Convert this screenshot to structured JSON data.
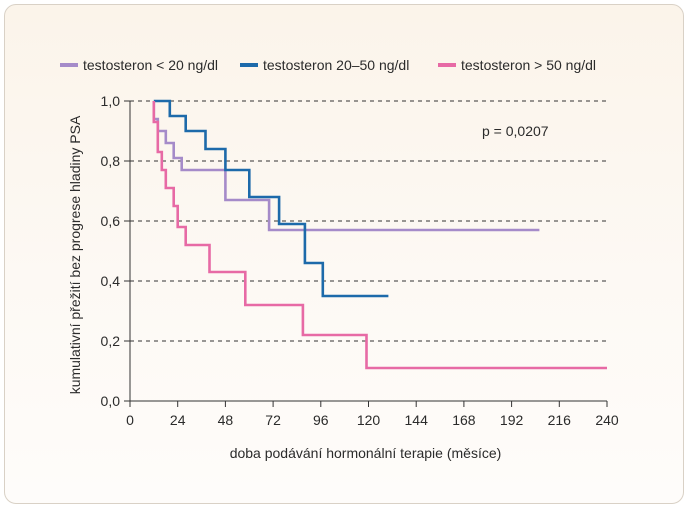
{
  "chart_data": {
    "type": "line",
    "subtype": "kaplan-meier step curves",
    "xlabel": "doba podávání hormonální terapie (měsíce)",
    "ylabel": "kumulativní přežití bez progrese hladiny PSA",
    "xlim": [
      0,
      240
    ],
    "ylim": [
      0,
      1
    ],
    "x_ticks": [
      0,
      24,
      48,
      72,
      96,
      120,
      144,
      168,
      192,
      216,
      240
    ],
    "y_ticks": [
      0,
      0.2,
      0.4,
      0.6,
      0.8,
      1.0
    ],
    "x_tick_labels": [
      "0",
      "24",
      "48",
      "72",
      "96",
      "120",
      "144",
      "168",
      "192",
      "216",
      "240"
    ],
    "y_tick_labels": [
      "0,0",
      "0,2",
      "0,4",
      "0,6",
      "0,8",
      "1,0"
    ],
    "grid": "horizontal dashed",
    "legend_position": "top",
    "annotation": "p = 0,0207",
    "series": [
      {
        "name": "testosteron < 20 ng/dl",
        "color": "#a58bc9",
        "x": [
          12,
          12,
          14,
          14,
          18,
          18,
          22,
          22,
          26,
          26,
          36,
          36,
          48,
          48,
          52,
          52,
          70,
          70,
          206
        ],
        "y": [
          1.0,
          0.94,
          0.94,
          0.9,
          0.9,
          0.86,
          0.86,
          0.81,
          0.81,
          0.77,
          0.77,
          0.77,
          0.77,
          0.67,
          0.67,
          0.67,
          0.67,
          0.57,
          0.57
        ]
      },
      {
        "name": "testosteron 20–50 ng/dl",
        "color": "#1d6aaa",
        "x": [
          12,
          20,
          20,
          28,
          28,
          38,
          38,
          48,
          48,
          60,
          60,
          75,
          75,
          88,
          88,
          97,
          97,
          130
        ],
        "y": [
          1.0,
          1.0,
          0.95,
          0.95,
          0.9,
          0.9,
          0.84,
          0.84,
          0.77,
          0.77,
          0.68,
          0.68,
          0.59,
          0.59,
          0.46,
          0.46,
          0.35,
          0.35
        ]
      },
      {
        "name": "testosteron > 50 ng/dl",
        "color": "#e76aa5",
        "x": [
          12,
          12,
          14,
          14,
          16,
          16,
          18,
          18,
          22,
          22,
          24,
          24,
          28,
          28,
          40,
          40,
          58,
          58,
          87,
          87,
          119,
          119,
          240
        ],
        "y": [
          1.0,
          0.93,
          0.93,
          0.83,
          0.83,
          0.77,
          0.77,
          0.71,
          0.71,
          0.65,
          0.65,
          0.58,
          0.58,
          0.52,
          0.52,
          0.43,
          0.43,
          0.32,
          0.32,
          0.22,
          0.22,
          0.11,
          0.11
        ]
      }
    ]
  }
}
